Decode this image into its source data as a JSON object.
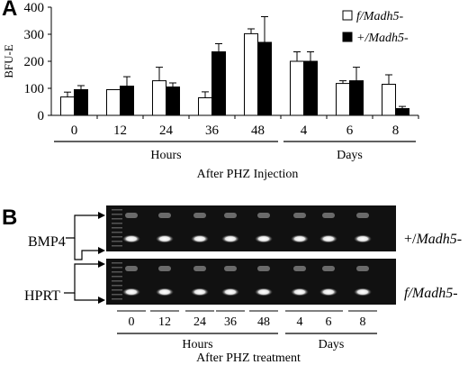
{
  "panel_a": {
    "label": "A",
    "chart_data": {
      "type": "bar",
      "ylabel": "BFU-E",
      "xlabel": "After PHZ Injection",
      "ylim": [
        0,
        400
      ],
      "yticks": [
        0,
        100,
        200,
        300,
        400
      ],
      "categories": [
        "0",
        "12",
        "24",
        "36",
        "48",
        "4",
        "6",
        "8"
      ],
      "groups": [
        {
          "label": "Hours",
          "categories": [
            "0",
            "12",
            "24",
            "36",
            "48"
          ]
        },
        {
          "label": "Days",
          "categories": [
            "4",
            "6",
            "8"
          ]
        }
      ],
      "series": [
        {
          "name": "f/Madh5-",
          "color": "#ffffff",
          "values": [
            68,
            95,
            128,
            65,
            302,
            200,
            118,
            115
          ],
          "errors": [
            18,
            0,
            50,
            22,
            18,
            35,
            10,
            35
          ]
        },
        {
          "name": "+/Madh5-",
          "color": "#000000",
          "values": [
            95,
            108,
            105,
            235,
            270,
            200,
            128,
            25
          ],
          "errors": [
            15,
            35,
            15,
            30,
            95,
            35,
            50,
            8
          ]
        }
      ],
      "legend": "top-right",
      "grid": false
    }
  },
  "panel_b": {
    "label": "B",
    "band_labels": [
      "BMP4",
      "HPRT"
    ],
    "lane_labels": [
      "0",
      "12",
      "24",
      "36",
      "48",
      "4",
      "6",
      "8"
    ],
    "groups": [
      {
        "label": "Hours",
        "lanes": [
          "0",
          "12",
          "24",
          "36",
          "48"
        ]
      },
      {
        "label": "Days",
        "lanes": [
          "4",
          "6",
          "8"
        ]
      }
    ],
    "genotypes": [
      {
        "prefix": "+/",
        "gene": "Madh5",
        "suffix": "-"
      },
      {
        "prefix": "f/",
        "gene": "Madh5",
        "suffix": "-"
      }
    ],
    "xlabel": "After PHZ treatment"
  }
}
